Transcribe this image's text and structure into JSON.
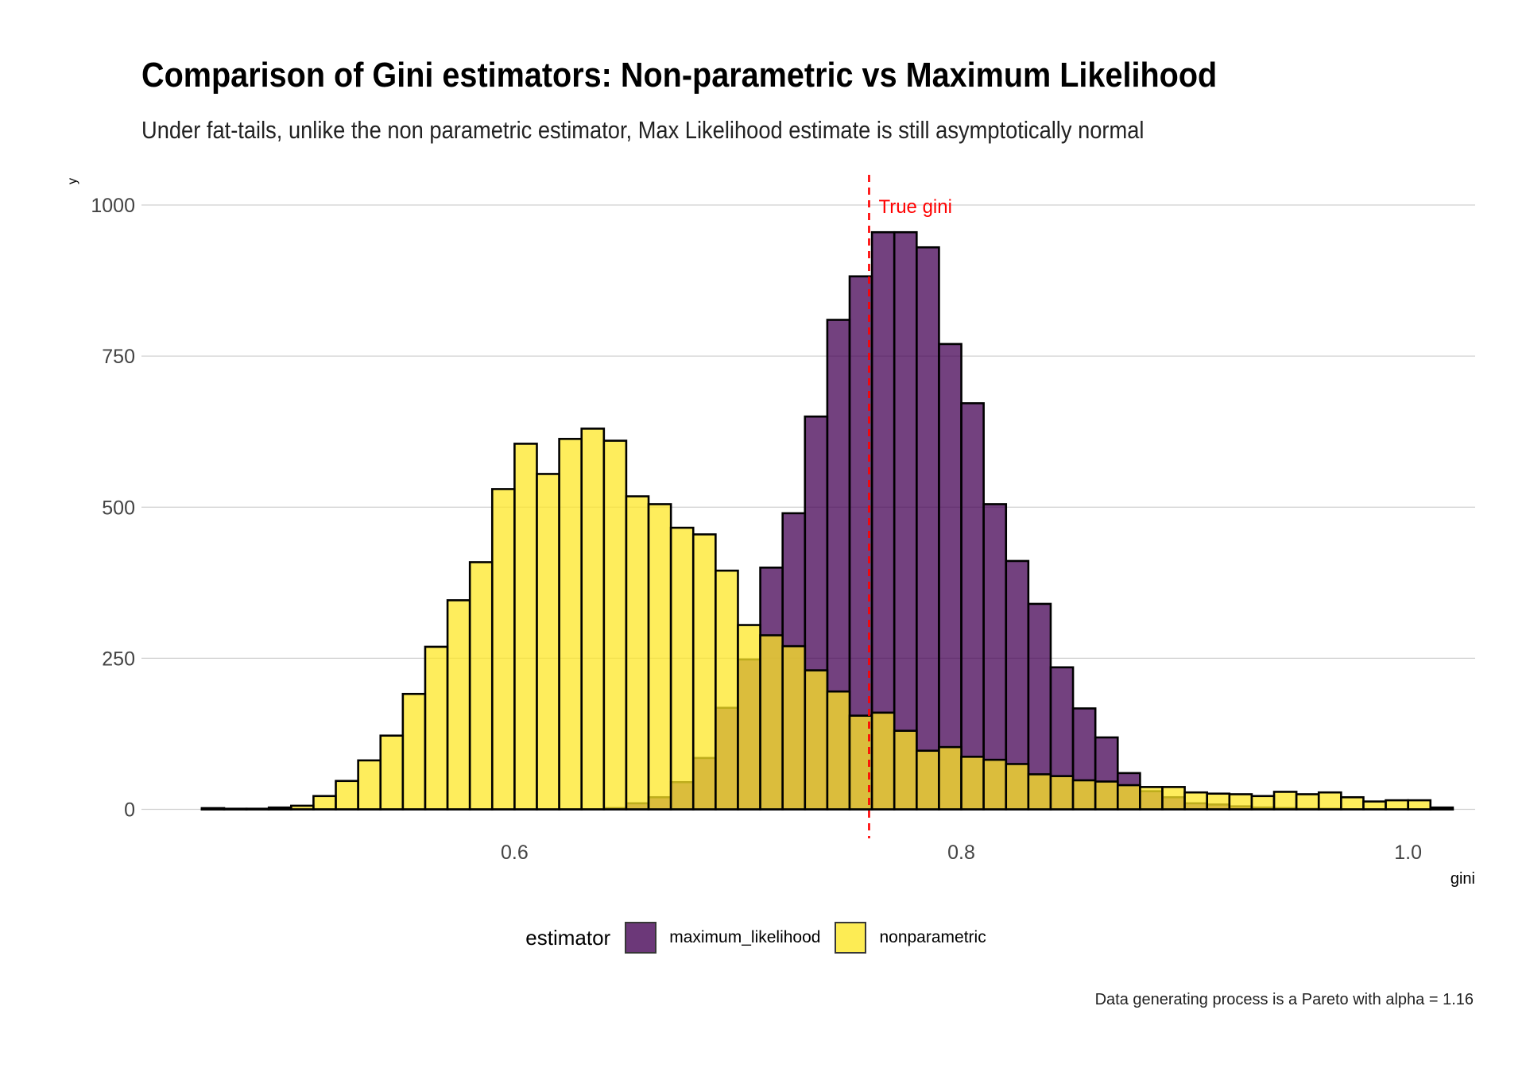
{
  "title": "Comparison of Gini estimators: Non-parametric vs Maximum Likelihood",
  "subtitle": "Under fat-tails, unlike the non parametric estimator, Max Likelihood estimate is still asymptotically normal",
  "caption": "Data generating process is a Pareto with alpha = 1.16",
  "legend": {
    "title": "estimator",
    "items": [
      {
        "label": "maximum_likelihood",
        "color": "#440154"
      },
      {
        "label": "nonparametric",
        "color": "#FDE725"
      }
    ]
  },
  "chart_data": {
    "type": "histogram",
    "xlabel": "gini",
    "ylabel": "y",
    "xlim": [
      0.433,
      1.03
    ],
    "ylim": [
      -48,
      1050
    ],
    "x_ticks": [
      0.6,
      0.8,
      1.0
    ],
    "x_tick_labels": [
      "0.6",
      "0.8",
      "1.0"
    ],
    "y_ticks": [
      0,
      250,
      500,
      750,
      1000
    ],
    "y_tick_labels": [
      "0",
      "250",
      "500",
      "750",
      "1000"
    ],
    "grid": true,
    "legend_position": "bottom",
    "bin_width": 0.01,
    "bin_start": 0.46,
    "series": [
      {
        "name": "maximum_likelihood",
        "color": "#440154",
        "opacity": 0.75,
        "values": [
          0,
          0,
          0,
          0,
          0,
          0,
          0,
          0,
          0,
          0,
          0,
          0,
          0,
          0,
          0,
          0,
          0,
          0,
          2,
          10,
          20,
          45,
          85,
          168,
          248,
          400,
          490,
          650,
          810,
          882,
          955,
          955,
          930,
          770,
          672,
          505,
          411,
          340,
          235,
          167,
          119,
          60,
          30,
          20,
          10,
          8,
          5,
          3,
          2,
          1,
          1,
          0,
          0,
          0,
          0,
          0
        ]
      },
      {
        "name": "nonparametric",
        "color": "#FDE725",
        "opacity": 0.75,
        "values": [
          2,
          1,
          1,
          3,
          6,
          22,
          47,
          81,
          122,
          191,
          269,
          346,
          409,
          530,
          605,
          555,
          613,
          630,
          610,
          518,
          505,
          466,
          455,
          395,
          305,
          288,
          270,
          230,
          195,
          155,
          160,
          130,
          97,
          103,
          87,
          82,
          75,
          58,
          55,
          48,
          46,
          40,
          37,
          37,
          28,
          26,
          25,
          22,
          29,
          25,
          28,
          20,
          13,
          15,
          15,
          3
        ]
      }
    ],
    "reference_lines": [
      {
        "x": 0.7587,
        "label": "True gini",
        "color": "#FF0000",
        "style": "dashed"
      }
    ]
  }
}
